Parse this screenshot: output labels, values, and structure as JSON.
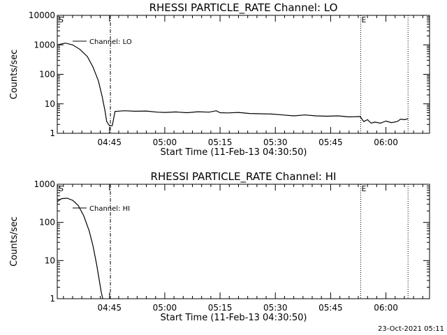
{
  "timestamp": "23-Oct-2021 05:11",
  "colors": {
    "background": "#ffffff",
    "foreground": "#000000"
  },
  "chart_data": [
    {
      "type": "line",
      "title": "RHESSI PARTICLE_RATE Channel: LO",
      "xlabel": "Start Time (11-Feb-13 04:30:50)",
      "ylabel": "Counts/sec",
      "xlim": [
        "04:30:50",
        "06:11:50"
      ],
      "ylim": [
        1,
        10000
      ],
      "yscale": "log",
      "x_tick_labels": [
        "04:45",
        "05:00",
        "05:15",
        "05:30",
        "05:45",
        "06:00"
      ],
      "y_tick_labels": [
        "1",
        "10",
        "100",
        "1000",
        "10000"
      ],
      "markers": {
        "start": "S",
        "end": "E"
      },
      "vertical_lines": [
        {
          "x": "04:45:15",
          "style": "dash-dot"
        },
        {
          "x": "05:53:10",
          "style": "dotted"
        },
        {
          "x": "06:06:00",
          "style": "dotted"
        }
      ],
      "legend": {
        "entry": "Channel: LO",
        "placement": "top-left"
      },
      "series": [
        {
          "name": "Channel: LO",
          "x": [
            "04:30:50",
            "04:33:00",
            "04:35:00",
            "04:37:00",
            "04:39:00",
            "04:40:30",
            "04:42:00",
            "04:43:00",
            "04:43:45",
            "04:44:15",
            "04:45:00",
            "04:45:30",
            "04:45:45",
            "04:46:30",
            "04:49:00",
            "04:52:00",
            "04:55:00",
            "04:58:00",
            "05:00:00",
            "05:03:00",
            "05:06:00",
            "05:09:00",
            "05:12:00",
            "05:14:00",
            "05:15:00",
            "05:17:00",
            "05:20:00",
            "05:23:00",
            "05:26:00",
            "05:29:00",
            "05:32:00",
            "05:35:00",
            "05:38:00",
            "05:41:00",
            "05:44:00",
            "05:47:00",
            "05:50:00",
            "05:53:00",
            "05:54:00",
            "05:55:00",
            "05:56:00",
            "05:57:00",
            "05:58:30",
            "06:00:00",
            "06:01:30",
            "06:03:00",
            "06:04:00",
            "06:05:00",
            "06:06:00"
          ],
          "values": [
            1000,
            1150,
            1000,
            700,
            400,
            180,
            60,
            18,
            6,
            2.5,
            1.8,
            1.8,
            1.8,
            5.5,
            5.8,
            5.6,
            5.7,
            5.2,
            5.1,
            5.3,
            5.0,
            5.4,
            5.2,
            5.8,
            5.0,
            4.9,
            5.1,
            4.7,
            4.6,
            4.5,
            4.2,
            3.9,
            4.2,
            3.9,
            3.8,
            3.9,
            3.6,
            3.7,
            2.5,
            2.9,
            2.2,
            2.4,
            2.2,
            2.6,
            2.3,
            2.5,
            3.0,
            2.9,
            3.1
          ]
        }
      ]
    },
    {
      "type": "line",
      "title": "RHESSI PARTICLE_RATE Channel: HI",
      "xlabel": "Start Time (11-Feb-13 04:30:50)",
      "ylabel": "Counts/sec",
      "xlim": [
        "04:30:50",
        "06:11:50"
      ],
      "ylim": [
        1,
        1000
      ],
      "yscale": "log",
      "x_tick_labels": [
        "04:45",
        "05:00",
        "05:15",
        "05:30",
        "05:45",
        "06:00"
      ],
      "y_tick_labels": [
        "1",
        "10",
        "100",
        "1000"
      ],
      "markers": {
        "start": "S",
        "end": "E"
      },
      "vertical_lines": [
        {
          "x": "04:45:15",
          "style": "dash-dot"
        },
        {
          "x": "05:53:10",
          "style": "dotted"
        },
        {
          "x": "06:06:00",
          "style": "dotted"
        }
      ],
      "legend": {
        "entry": "Channel: HI",
        "placement": "top-left"
      },
      "series": [
        {
          "name": "Channel: HI",
          "x": [
            "04:30:50",
            "04:32:00",
            "04:33:30",
            "04:35:00",
            "04:36:30",
            "04:38:00",
            "04:39:30",
            "04:40:30",
            "04:41:30",
            "04:42:15",
            "04:42:45",
            "04:43:10"
          ],
          "values": [
            350,
            420,
            430,
            380,
            280,
            150,
            60,
            25,
            8,
            3,
            1.5,
            1.0
          ]
        }
      ]
    }
  ]
}
